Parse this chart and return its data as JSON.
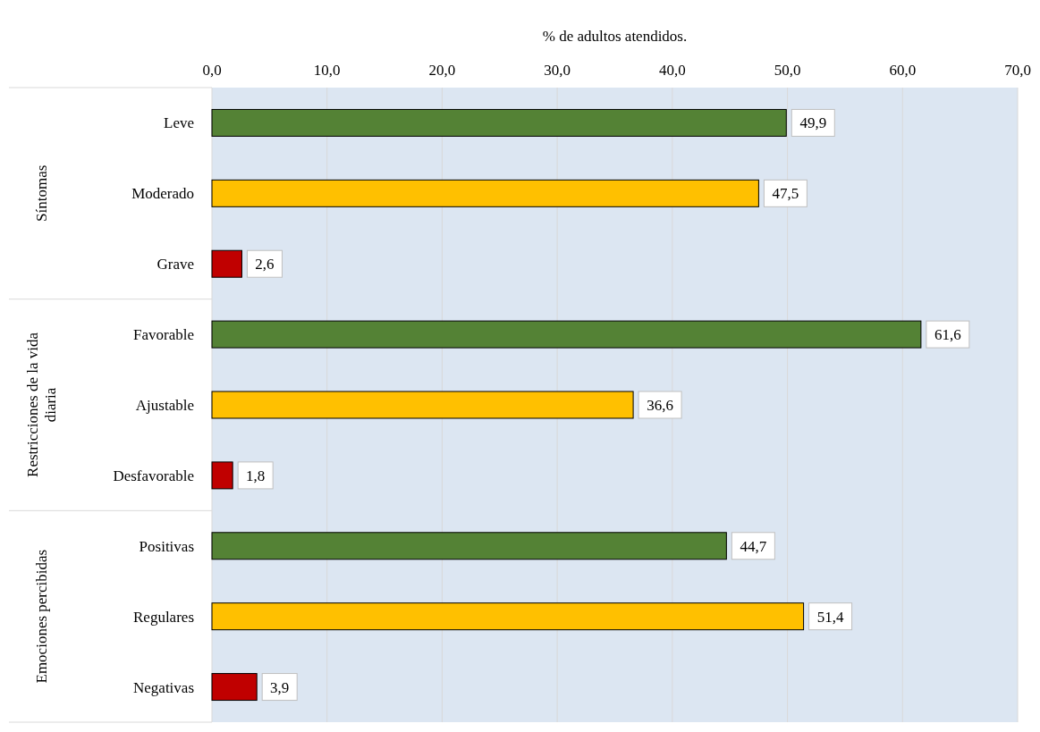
{
  "chart_data": {
    "type": "bar",
    "orientation": "horizontal",
    "xlabel": "% de adultos atendidos.",
    "categories": [
      "Leve",
      "Moderado",
      "Grave",
      "Favorable",
      "Ajustable",
      "Desfavorable",
      "Positivas",
      "Regulares",
      "Negativas"
    ],
    "values": [
      49.9,
      47.5,
      2.6,
      61.6,
      36.6,
      1.8,
      44.7,
      51.4,
      3.9
    ],
    "colors": [
      "#548235",
      "#ffc000",
      "#c00000",
      "#548235",
      "#ffc000",
      "#c00000",
      "#548235",
      "#ffc000",
      "#c00000"
    ],
    "value_labels": [
      "49,9",
      "47,5",
      "2,6",
      "61,6",
      "36,6",
      "1,8",
      "44,7",
      "51,4",
      "3,9"
    ],
    "xlim": [
      0,
      70
    ],
    "xticks": [
      {
        "value": 0,
        "label": "0,0"
      },
      {
        "value": 10,
        "label": "10,0"
      },
      {
        "value": 20,
        "label": "20,0"
      },
      {
        "value": 30,
        "label": "30,0"
      },
      {
        "value": 40,
        "label": "40,0"
      },
      {
        "value": 50,
        "label": "50,0"
      },
      {
        "value": 60,
        "label": "60,0"
      },
      {
        "value": 70,
        "label": "70,0"
      }
    ],
    "grid": "x",
    "annotations": [
      "Síntomas",
      "Restricciones de la vida diaria",
      "Emociones percibidas"
    ]
  }
}
